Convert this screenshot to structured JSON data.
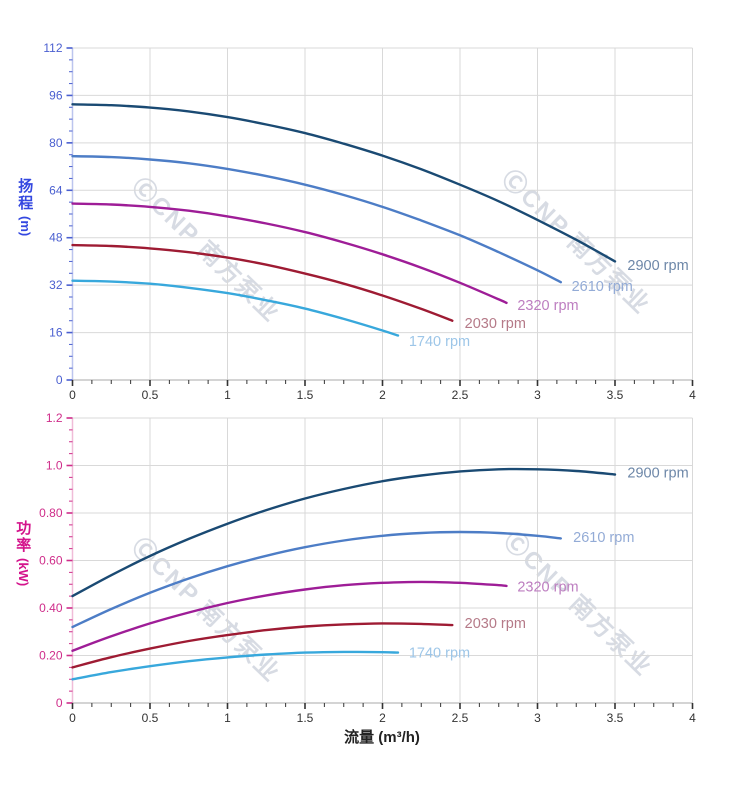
{
  "watermark": {
    "text": "ⒸCNP 南方泵业",
    "color": "#d7dbe3"
  },
  "titles": {
    "head": "扬程",
    "head_unit": "(m)",
    "power": "功率",
    "power_unit": "(kW)",
    "flow": "流量 (m³/h)"
  },
  "chart_data": [
    {
      "type": "line",
      "title": "",
      "ylabel": "扬程 (m)",
      "xlabel": "",
      "grid": true,
      "legend_position": "end-of-line labels",
      "xlim": [
        0,
        4
      ],
      "ylim": [
        0,
        112
      ],
      "x_axis": {
        "major": 0.5,
        "minor": 0.125,
        "tick_labels": [
          "0",
          "0.5",
          "1",
          "1.5",
          "2",
          "2.5",
          "3",
          "3.5",
          "4"
        ],
        "tick_color": "#333333",
        "label_color": "#333333",
        "line_color": "#c6c6c6"
      },
      "y_axis": {
        "major": 16,
        "minor": 4,
        "tick_labels": [
          "0",
          "16",
          "32",
          "48",
          "64",
          "80",
          "96",
          "112"
        ],
        "tick_color": "#4a5fd0",
        "label_color": "#4a5fd0",
        "line_color": "#bcc5ee"
      },
      "series": [
        {
          "name": "2900 rpm",
          "color": "#1a4a73",
          "label_color": "#6d87a8",
          "label_xy": [
            3.58,
            38.8
          ],
          "x": [
            0,
            0.25,
            0.5,
            0.75,
            1,
            1.25,
            1.5,
            1.75,
            2,
            2.25,
            2.5,
            2.75,
            3,
            3.25,
            3.5
          ],
          "y": [
            93,
            92.7,
            91.9,
            90.6,
            88.7,
            86.2,
            83.3,
            79.7,
            75.7,
            71.1,
            65.9,
            60.3,
            54,
            47.3,
            40
          ]
        },
        {
          "name": "2610 rpm",
          "color": "#4d7dc6",
          "label_color": "#93abd6",
          "label_xy": [
            3.22,
            31.7
          ],
          "x": [
            0,
            0.25,
            0.5,
            0.75,
            1,
            1.25,
            1.5,
            1.75,
            2,
            2.25,
            2.5,
            2.75,
            3,
            3.15
          ],
          "y": [
            75.5,
            75.2,
            74.4,
            73.1,
            71.2,
            68.8,
            65.9,
            62.4,
            58.4,
            53.8,
            48.8,
            43.1,
            37,
            33
          ]
        },
        {
          "name": "2320 rpm",
          "color": "#9e1d97",
          "label_color": "#bd7ec0",
          "label_xy": [
            2.87,
            25.3
          ],
          "x": [
            0,
            0.25,
            0.5,
            0.75,
            1,
            1.25,
            1.5,
            1.75,
            2,
            2.25,
            2.5,
            2.75,
            2.8
          ],
          "y": [
            59.5,
            59.2,
            58.4,
            57.1,
            55.2,
            52.8,
            49.9,
            46.4,
            42.4,
            37.9,
            32.8,
            27.2,
            26
          ]
        },
        {
          "name": "2030 rpm",
          "color": "#9e1b33",
          "label_color": "#b57a88",
          "label_xy": [
            2.53,
            19.2
          ],
          "x": [
            0,
            0.25,
            0.5,
            0.75,
            1,
            1.25,
            1.5,
            1.75,
            2,
            2.25,
            2.45
          ],
          "y": [
            45.5,
            45.2,
            44.4,
            43.1,
            41.3,
            38.9,
            35.9,
            32.5,
            28.5,
            24,
            20
          ]
        },
        {
          "name": "1740 rpm",
          "color": "#38a8dc",
          "label_color": "#9dc6e8",
          "label_xy": [
            2.17,
            13.2
          ],
          "x": [
            0,
            0.25,
            0.5,
            0.75,
            1,
            1.25,
            1.5,
            1.75,
            2,
            2.1
          ],
          "y": [
            33.5,
            33.2,
            32.5,
            31.1,
            29.3,
            26.9,
            24.1,
            20.6,
            16.7,
            15
          ]
        }
      ]
    },
    {
      "type": "line",
      "title": "",
      "ylabel": "功率 (kW)",
      "xlabel": "流量 (m³/h)",
      "grid": true,
      "legend_position": "end-of-line labels",
      "xlim": [
        0,
        4
      ],
      "ylim": [
        0,
        1.2
      ],
      "x_axis": {
        "major": 0.5,
        "minor": 0.125,
        "tick_labels": [
          "0",
          "0.5",
          "1",
          "1.5",
          "2",
          "2.5",
          "3",
          "3.5",
          "4"
        ],
        "tick_color": "#333333",
        "label_color": "#333333",
        "line_color": "#c6c6c6"
      },
      "y_axis": {
        "major": 0.2,
        "minor": 0.05,
        "tick_labels": [
          "0",
          "0.20",
          "0.40",
          "0.60",
          "0.80",
          "1.0",
          "1.2"
        ],
        "tick_color": "#cf2d8a",
        "label_color": "#cf2d8a",
        "line_color": "#f0bcd8"
      },
      "series": [
        {
          "name": "2900 rpm",
          "color": "#1a4a73",
          "label_color": "#6d87a8",
          "label_xy": [
            3.58,
            0.971
          ],
          "x": [
            0,
            0.25,
            0.5,
            0.75,
            1,
            1.25,
            1.5,
            1.75,
            2,
            2.25,
            2.5,
            2.75,
            3,
            3.25,
            3.5
          ],
          "y": [
            0.45,
            0.538,
            0.619,
            0.691,
            0.755,
            0.812,
            0.861,
            0.901,
            0.934,
            0.958,
            0.975,
            0.984,
            0.984,
            0.977,
            0.962
          ]
        },
        {
          "name": "2610 rpm",
          "color": "#4d7dc6",
          "label_color": "#93abd6",
          "label_xy": [
            3.23,
            0.698
          ],
          "x": [
            0,
            0.25,
            0.5,
            0.75,
            1,
            1.25,
            1.5,
            1.75,
            2,
            2.25,
            2.5,
            2.75,
            3,
            3.15
          ],
          "y": [
            0.32,
            0.396,
            0.464,
            0.524,
            0.576,
            0.62,
            0.656,
            0.684,
            0.704,
            0.716,
            0.72,
            0.716,
            0.704,
            0.693
          ]
        },
        {
          "name": "2320 rpm",
          "color": "#9e1d97",
          "label_color": "#bd7ec0",
          "label_xy": [
            2.87,
            0.491
          ],
          "x": [
            0,
            0.25,
            0.5,
            0.75,
            1,
            1.25,
            1.5,
            1.75,
            2,
            2.25,
            2.5,
            2.75,
            2.8
          ],
          "y": [
            0.22,
            0.281,
            0.335,
            0.381,
            0.421,
            0.453,
            0.478,
            0.496,
            0.506,
            0.51,
            0.506,
            0.496,
            0.493
          ]
        },
        {
          "name": "2030 rpm",
          "color": "#9e1b33",
          "label_color": "#b57a88",
          "label_xy": [
            2.53,
            0.336
          ],
          "x": [
            0,
            0.25,
            0.5,
            0.75,
            1,
            1.25,
            1.5,
            1.75,
            2,
            2.25,
            2.45
          ],
          "y": [
            0.15,
            0.193,
            0.229,
            0.261,
            0.286,
            0.307,
            0.322,
            0.331,
            0.335,
            0.333,
            0.328
          ]
        },
        {
          "name": "1740 rpm",
          "color": "#38a8dc",
          "label_color": "#9dc6e8",
          "label_xy": [
            2.17,
            0.213
          ],
          "x": [
            0,
            0.25,
            0.5,
            0.75,
            1,
            1.25,
            1.5,
            1.75,
            2,
            2.1
          ],
          "y": [
            0.1,
            0.13,
            0.155,
            0.176,
            0.192,
            0.204,
            0.212,
            0.215,
            0.214,
            0.212
          ]
        }
      ]
    }
  ]
}
